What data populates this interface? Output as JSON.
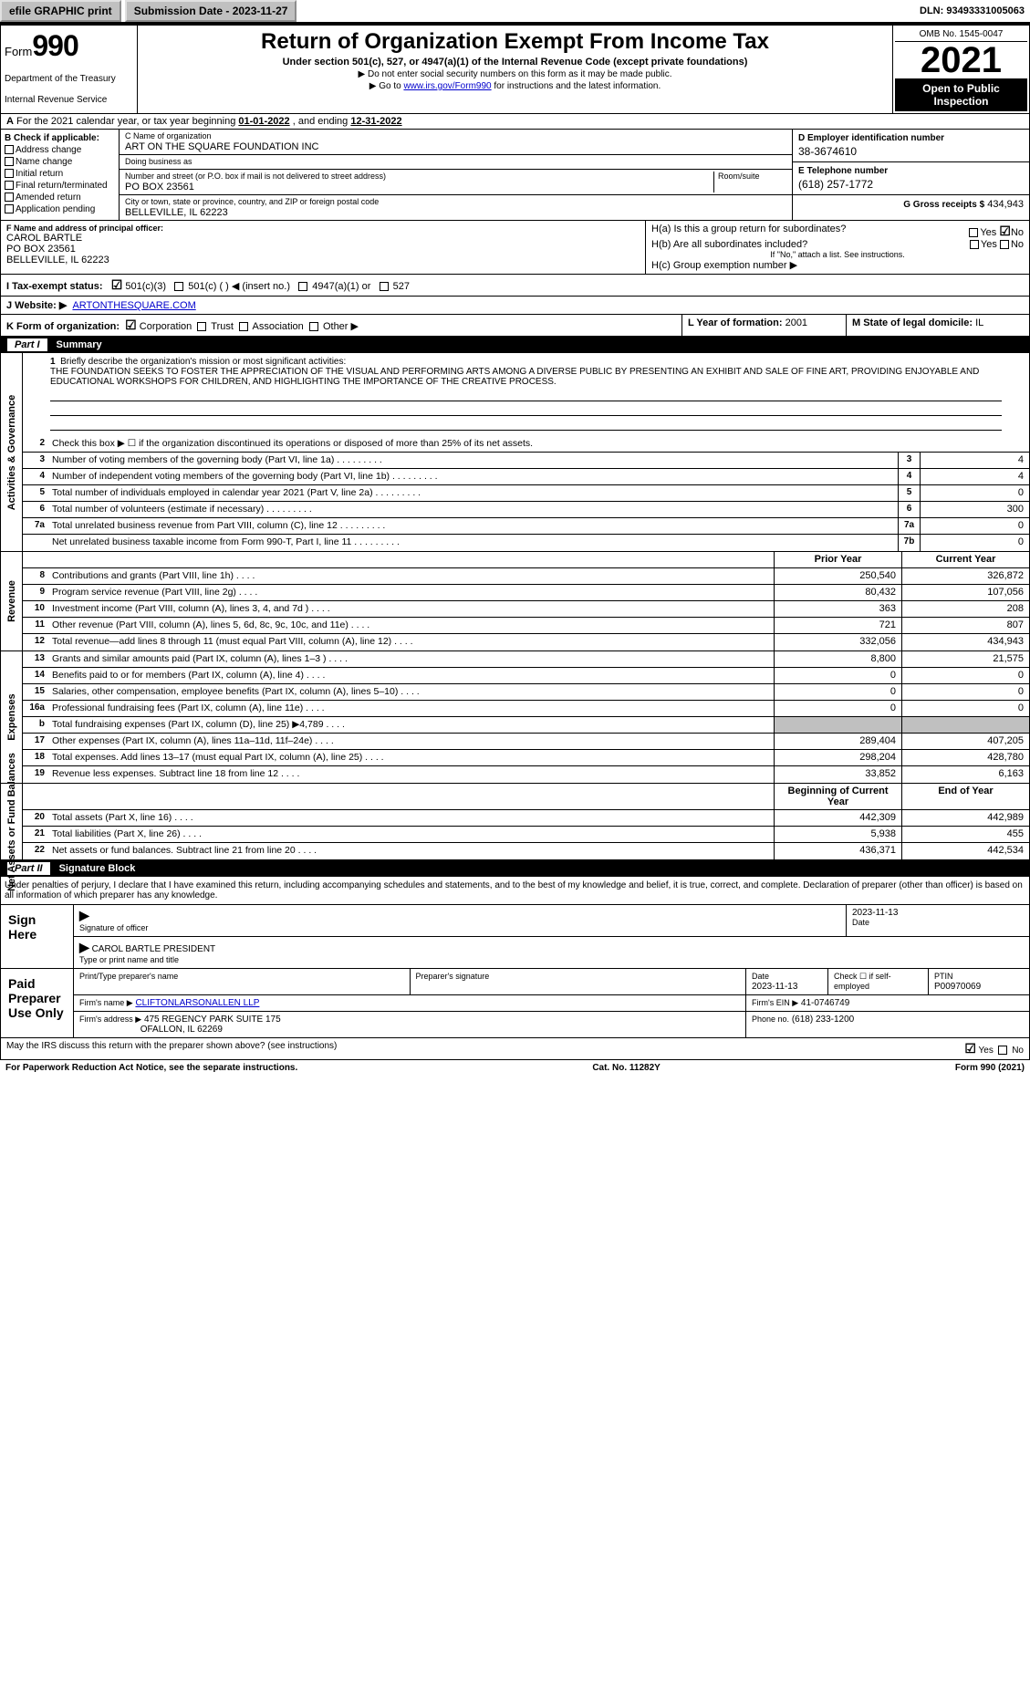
{
  "topbar": {
    "efile": "efile GRAPHIC print",
    "submission_label": "Submission Date - 2023-11-27",
    "dln": "DLN: 93493331005063"
  },
  "header": {
    "form_word": "Form",
    "form_num": "990",
    "title": "Return of Organization Exempt From Income Tax",
    "subtitle": "Under section 501(c), 527, or 4947(a)(1) of the Internal Revenue Code (except private foundations)",
    "note1": "▶ Do not enter social security numbers on this form as it may be made public.",
    "note2_pre": "▶ Go to ",
    "note2_link": "www.irs.gov/Form990",
    "note2_post": " for instructions and the latest information.",
    "dept": "Department of the Treasury",
    "irs": "Internal Revenue Service",
    "omb": "OMB No. 1545-0047",
    "year": "2021",
    "open": "Open to Public Inspection"
  },
  "row_a": {
    "text_pre": "For the 2021 calendar year, or tax year beginning ",
    "begin": "01-01-2022",
    "mid": " , and ending ",
    "end": "12-31-2022"
  },
  "col_b": {
    "header": "B Check if applicable:",
    "items": [
      "Address change",
      "Name change",
      "Initial return",
      "Final return/terminated",
      "Amended return",
      "Application pending"
    ]
  },
  "col_c": {
    "name_label": "C Name of organization",
    "name": "ART ON THE SQUARE FOUNDATION INC",
    "dba_label": "Doing business as",
    "dba": "",
    "addr_label": "Number and street (or P.O. box if mail is not delivered to street address)",
    "room_label": "Room/suite",
    "addr": "PO BOX 23561",
    "city_label": "City or town, state or province, country, and ZIP or foreign postal code",
    "city": "BELLEVILLE, IL  62223"
  },
  "col_d": {
    "ein_label": "D Employer identification number",
    "ein": "38-3674610",
    "phone_label": "E Telephone number",
    "phone": "(618) 257-1772",
    "gross_label": "G Gross receipts $",
    "gross": "434,943"
  },
  "row_f": {
    "f_label": "F Name and address of principal officer:",
    "f_name": "CAROL BARTLE",
    "f_addr1": "PO BOX 23561",
    "f_addr2": "BELLEVILLE, IL  62223",
    "ha": "H(a)  Is this a group return for subordinates?",
    "hb": "H(b)  Are all subordinates included?",
    "hb_note": "If \"No,\" attach a list. See instructions.",
    "hc": "H(c)  Group exemption number ▶",
    "yes": "Yes",
    "no": "No"
  },
  "row_i": {
    "label": "I  Tax-exempt status:",
    "c3": "501(c)(3)",
    "c": "501(c) (   ) ◀ (insert no.)",
    "a1": "4947(a)(1) or",
    "s527": "527"
  },
  "row_j": {
    "label": "J  Website: ▶",
    "val": "ARTONTHESQUARE.COM"
  },
  "row_k": {
    "label": "K Form of organization:",
    "corp": "Corporation",
    "trust": "Trust",
    "assoc": "Association",
    "other": "Other ▶",
    "l_label": "L Year of formation:",
    "l_val": "2001",
    "m_label": "M State of legal domicile:",
    "m_val": "IL"
  },
  "part1": {
    "num": "Part I",
    "title": "Summary"
  },
  "summary": {
    "line1_label": "Briefly describe the organization's mission or most significant activities:",
    "mission": "THE FOUNDATION SEEKS TO FOSTER THE APPRECIATION OF THE VISUAL AND PERFORMING ARTS AMONG A DIVERSE PUBLIC BY PRESENTING AN EXHIBIT AND SALE OF FINE ART, PROVIDING ENJOYABLE AND EDUCATIONAL WORKSHOPS FOR CHILDREN, AND HIGHLIGHTING THE IMPORTANCE OF THE CREATIVE PROCESS.",
    "line2": "Check this box ▶ ☐ if the organization discontinued its operations or disposed of more than 25% of its net assets.",
    "rows_gov": [
      {
        "n": "3",
        "t": "Number of voting members of the governing body (Part VI, line 1a)",
        "box": "3",
        "v": "4"
      },
      {
        "n": "4",
        "t": "Number of independent voting members of the governing body (Part VI, line 1b)",
        "box": "4",
        "v": "4"
      },
      {
        "n": "5",
        "t": "Total number of individuals employed in calendar year 2021 (Part V, line 2a)",
        "box": "5",
        "v": "0"
      },
      {
        "n": "6",
        "t": "Total number of volunteers (estimate if necessary)",
        "box": "6",
        "v": "300"
      },
      {
        "n": "7a",
        "t": "Total unrelated business revenue from Part VIII, column (C), line 12",
        "box": "7a",
        "v": "0"
      },
      {
        "n": "",
        "t": "Net unrelated business taxable income from Form 990-T, Part I, line 11",
        "box": "7b",
        "v": "0"
      }
    ],
    "col_hdr_prior": "Prior Year",
    "col_hdr_current": "Current Year",
    "revenue": [
      {
        "n": "8",
        "t": "Contributions and grants (Part VIII, line 1h)",
        "p": "250,540",
        "c": "326,872"
      },
      {
        "n": "9",
        "t": "Program service revenue (Part VIII, line 2g)",
        "p": "80,432",
        "c": "107,056"
      },
      {
        "n": "10",
        "t": "Investment income (Part VIII, column (A), lines 3, 4, and 7d )",
        "p": "363",
        "c": "208"
      },
      {
        "n": "11",
        "t": "Other revenue (Part VIII, column (A), lines 5, 6d, 8c, 9c, 10c, and 11e)",
        "p": "721",
        "c": "807"
      },
      {
        "n": "12",
        "t": "Total revenue—add lines 8 through 11 (must equal Part VIII, column (A), line 12)",
        "p": "332,056",
        "c": "434,943"
      }
    ],
    "expenses": [
      {
        "n": "13",
        "t": "Grants and similar amounts paid (Part IX, column (A), lines 1–3 )",
        "p": "8,800",
        "c": "21,575"
      },
      {
        "n": "14",
        "t": "Benefits paid to or for members (Part IX, column (A), line 4)",
        "p": "0",
        "c": "0"
      },
      {
        "n": "15",
        "t": "Salaries, other compensation, employee benefits (Part IX, column (A), lines 5–10)",
        "p": "0",
        "c": "0"
      },
      {
        "n": "16a",
        "t": "Professional fundraising fees (Part IX, column (A), line 11e)",
        "p": "0",
        "c": "0"
      },
      {
        "n": "b",
        "t": "Total fundraising expenses (Part IX, column (D), line 25) ▶4,789",
        "p": "",
        "c": "",
        "shade": true
      },
      {
        "n": "17",
        "t": "Other expenses (Part IX, column (A), lines 11a–11d, 11f–24e)",
        "p": "289,404",
        "c": "407,205"
      },
      {
        "n": "18",
        "t": "Total expenses. Add lines 13–17 (must equal Part IX, column (A), line 25)",
        "p": "298,204",
        "c": "428,780"
      },
      {
        "n": "19",
        "t": "Revenue less expenses. Subtract line 18 from line 12",
        "p": "33,852",
        "c": "6,163"
      }
    ],
    "col_hdr_begin": "Beginning of Current Year",
    "col_hdr_end": "End of Year",
    "netassets": [
      {
        "n": "20",
        "t": "Total assets (Part X, line 16)",
        "p": "442,309",
        "c": "442,989"
      },
      {
        "n": "21",
        "t": "Total liabilities (Part X, line 26)",
        "p": "5,938",
        "c": "455"
      },
      {
        "n": "22",
        "t": "Net assets or fund balances. Subtract line 21 from line 20",
        "p": "436,371",
        "c": "442,534"
      }
    ]
  },
  "vtabs": {
    "gov": "Activities & Governance",
    "rev": "Revenue",
    "exp": "Expenses",
    "net": "Net Assets or Fund Balances"
  },
  "part2": {
    "num": "Part II",
    "title": "Signature Block",
    "decl": "Under penalties of perjury, I declare that I have examined this return, including accompanying schedules and statements, and to the best of my knowledge and belief, it is true, correct, and complete. Declaration of preparer (other than officer) is based on all information of which preparer has any knowledge."
  },
  "sign": {
    "here": "Sign Here",
    "sig_officer": "Signature of officer",
    "date": "Date",
    "date_val": "2023-11-13",
    "name_title": "CAROL BARTLE  PRESIDENT",
    "name_label": "Type or print name and title"
  },
  "paid": {
    "label": "Paid Preparer Use Only",
    "print_name": "Print/Type preparer's name",
    "prep_sig": "Preparer's signature",
    "date_l": "Date",
    "date_v": "2023-11-13",
    "check_l": "Check ☐ if self-employed",
    "ptin_l": "PTIN",
    "ptin_v": "P00970069",
    "firm_name_l": "Firm's name    ▶",
    "firm_name": "CLIFTONLARSONALLEN LLP",
    "firm_ein_l": "Firm's EIN ▶",
    "firm_ein": "41-0746749",
    "firm_addr_l": "Firm's address ▶",
    "firm_addr1": "475 REGENCY PARK SUITE 175",
    "firm_addr2": "OFALLON, IL  62269",
    "phone_l": "Phone no.",
    "phone": "(618) 233-1200"
  },
  "footer": {
    "discuss": "May the IRS discuss this return with the preparer shown above? (see instructions)",
    "yes": "Yes",
    "no": "No",
    "pra": "For Paperwork Reduction Act Notice, see the separate instructions.",
    "cat": "Cat. No. 11282Y",
    "form": "Form 990 (2021)"
  },
  "style": {
    "colors": {
      "bg": "#ffffff",
      "text": "#000000",
      "shade": "#c0c0c0",
      "link": "#0000cc",
      "header_bg": "#000000",
      "header_fg": "#ffffff"
    },
    "fonts": {
      "base_size": 11,
      "title_size": 24,
      "year_size": 40,
      "form_num_size": 32
    }
  }
}
